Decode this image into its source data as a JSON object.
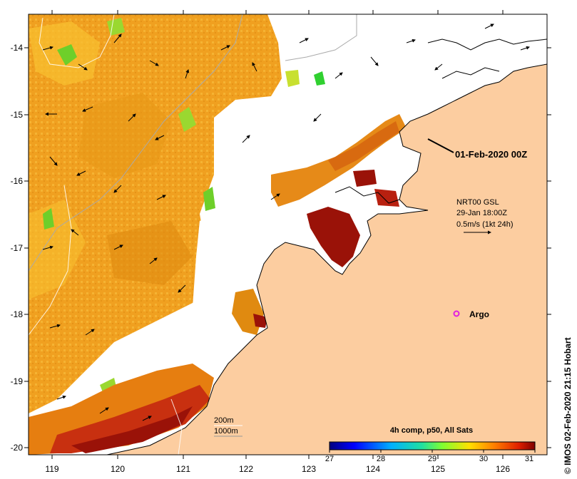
{
  "map": {
    "lon_ticks": [
      "119",
      "120",
      "121",
      "122",
      "123",
      "124",
      "125",
      "126"
    ],
    "lat_ticks": [
      "-14",
      "-15",
      "-16",
      "-17",
      "-18",
      "-19",
      "-20"
    ],
    "date_label": "01-Feb-2020 00Z",
    "current_legend": {
      "line1": "NRT00 GSL",
      "line2": "29-Jan 18:00Z",
      "line3": "0.5m/s (1kt 24h)"
    },
    "argo_label": "Argo",
    "depth_labels": [
      "200m",
      "1000m"
    ],
    "colorbar": {
      "title": "4h comp, p50, All Sats",
      "ticks": [
        "27",
        "28",
        "29",
        "30",
        "31"
      ],
      "min": 27,
      "max": 31
    },
    "credit": "© IMOS 02-Feb-2020 21:15 Hobart",
    "colors": {
      "land": "#fccda0",
      "warm_orange": "#f0a020",
      "hot_red": "#9a1208",
      "green": "#6ecf2a",
      "contour": "#999999"
    }
  }
}
